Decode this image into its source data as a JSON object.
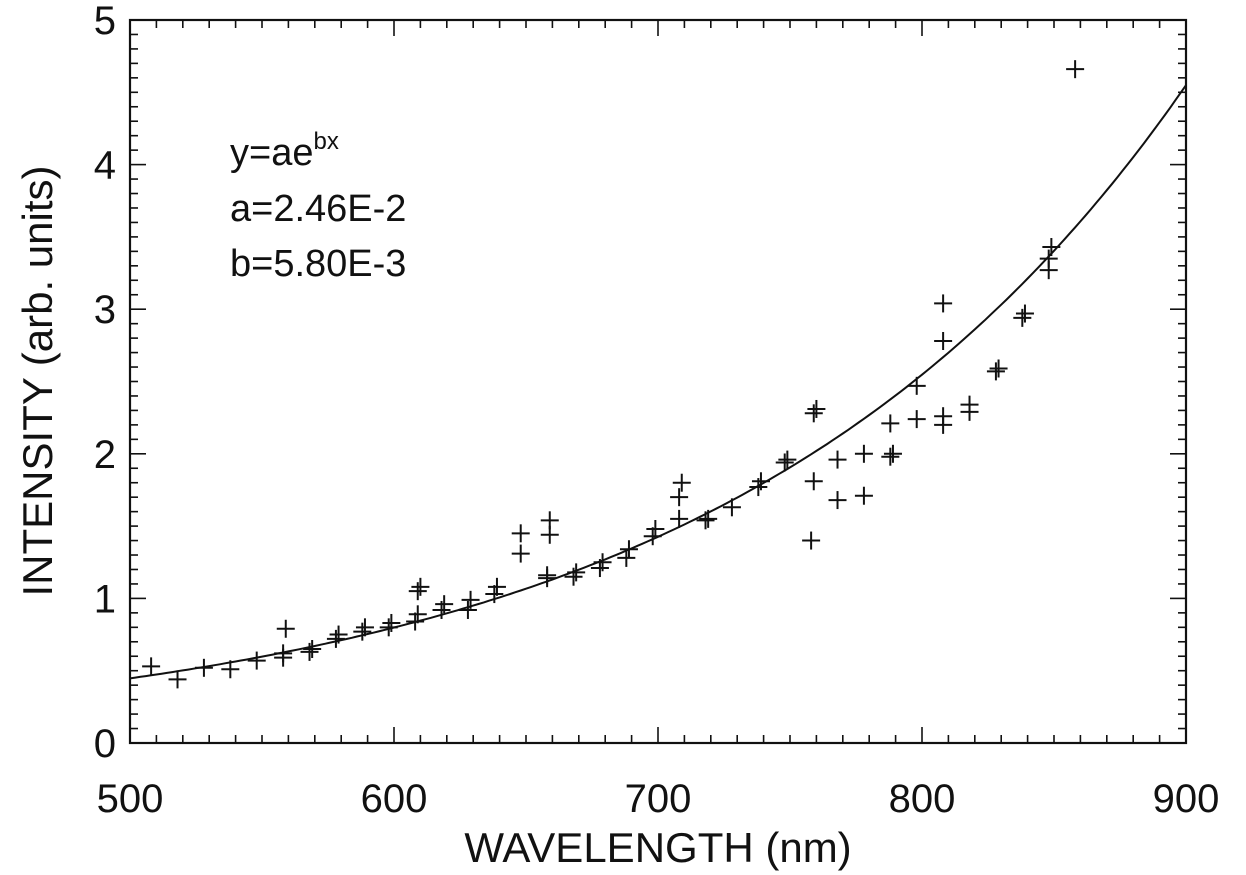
{
  "chart_data": {
    "type": "scatter",
    "xlabel": "WAVELENGTH (nm)",
    "ylabel": "INTENSITY (arb. units)",
    "xlim": [
      500,
      900
    ],
    "ylim": [
      0,
      5
    ],
    "xticks": [
      "500",
      "600",
      "700",
      "800",
      "900"
    ],
    "yticks": [
      "0",
      "1",
      "2",
      "3",
      "4",
      "5"
    ],
    "annotation": {
      "equation_base": "y=ae",
      "equation_exp": "bx",
      "a_line": "a=2.46E-2",
      "b_line": "b=5.80E-3"
    },
    "fit": {
      "a": 0.0246,
      "b": 0.0058
    },
    "points": [
      [
        508,
        0.53
      ],
      [
        518,
        0.44
      ],
      [
        528,
        0.52
      ],
      [
        538,
        0.51
      ],
      [
        548,
        0.57
      ],
      [
        558,
        0.59
      ],
      [
        558,
        0.62
      ],
      [
        559,
        0.79
      ],
      [
        568,
        0.63
      ],
      [
        569,
        0.65
      ],
      [
        578,
        0.72
      ],
      [
        579,
        0.75
      ],
      [
        588,
        0.77
      ],
      [
        589,
        0.8
      ],
      [
        598,
        0.8
      ],
      [
        599,
        0.83
      ],
      [
        608,
        0.84
      ],
      [
        609,
        0.89
      ],
      [
        609,
        1.05
      ],
      [
        610,
        1.08
      ],
      [
        618,
        0.92
      ],
      [
        619,
        0.96
      ],
      [
        628,
        0.92
      ],
      [
        629,
        0.99
      ],
      [
        638,
        1.03
      ],
      [
        639,
        1.08
      ],
      [
        648,
        1.31
      ],
      [
        648,
        1.45
      ],
      [
        658,
        1.14
      ],
      [
        658,
        1.16
      ],
      [
        659,
        1.44
      ],
      [
        659,
        1.54
      ],
      [
        668,
        1.15
      ],
      [
        669,
        1.18
      ],
      [
        678,
        1.21
      ],
      [
        679,
        1.25
      ],
      [
        688,
        1.28
      ],
      [
        689,
        1.34
      ],
      [
        698,
        1.43
      ],
      [
        699,
        1.48
      ],
      [
        708,
        1.55
      ],
      [
        708,
        1.7
      ],
      [
        709,
        1.8
      ],
      [
        718,
        1.54
      ],
      [
        719,
        1.55
      ],
      [
        728,
        1.63
      ],
      [
        738,
        1.77
      ],
      [
        739,
        1.81
      ],
      [
        748,
        1.94
      ],
      [
        749,
        1.96
      ],
      [
        758,
        1.4
      ],
      [
        759,
        1.81
      ],
      [
        759,
        2.28
      ],
      [
        760,
        2.31
      ],
      [
        768,
        1.68
      ],
      [
        768,
        1.96
      ],
      [
        778,
        1.71
      ],
      [
        778,
        2.0
      ],
      [
        788,
        1.98
      ],
      [
        788,
        2.21
      ],
      [
        789,
        2.0
      ],
      [
        798,
        2.24
      ],
      [
        798,
        2.47
      ],
      [
        808,
        2.2
      ],
      [
        808,
        2.26
      ],
      [
        808,
        2.78
      ],
      [
        808,
        3.04
      ],
      [
        818,
        2.29
      ],
      [
        818,
        2.34
      ],
      [
        828,
        2.57
      ],
      [
        829,
        2.59
      ],
      [
        838,
        2.94
      ],
      [
        839,
        2.97
      ],
      [
        848,
        3.27
      ],
      [
        848,
        3.35
      ],
      [
        849,
        3.43
      ],
      [
        858,
        4.66
      ]
    ]
  }
}
